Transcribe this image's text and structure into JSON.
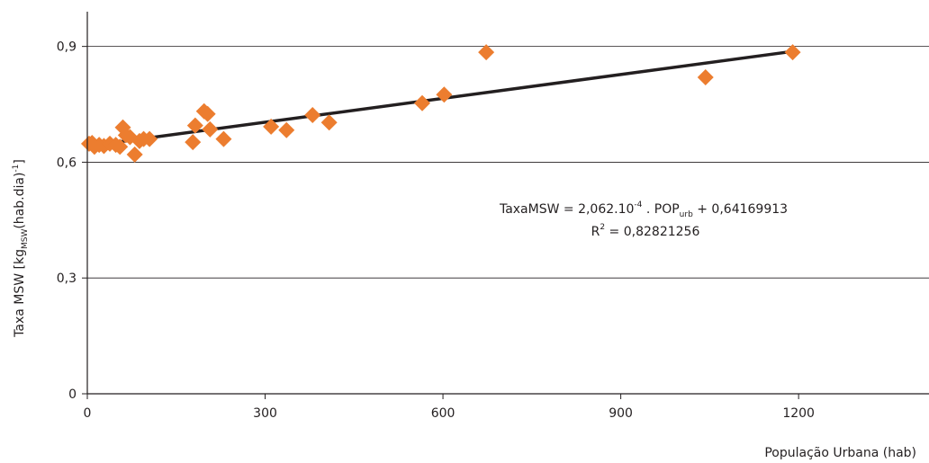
{
  "chart_data": {
    "type": "scatter",
    "xlabel": "População Urbana (hab)",
    "ylabel_parts": {
      "main": "Taxa MSW [kg",
      "sub": "MSW",
      "mid": "(hab.dia)",
      "sup": "-1",
      "end": "]"
    },
    "xlim": [
      0,
      1420
    ],
    "ylim": [
      0,
      0.99
    ],
    "x_ticks": [
      0,
      300,
      600,
      900,
      1200
    ],
    "x_tick_labels": [
      "0",
      "300",
      "600",
      "900",
      "1200"
    ],
    "y_ticks": [
      0,
      0.3,
      0.6,
      0.9
    ],
    "y_tick_labels": [
      "0",
      "0,3",
      "0,6",
      "0,9"
    ],
    "grid": "horizontal",
    "marker_color": "#ec7d2f",
    "line_color": "#231f20",
    "points": [
      {
        "x": 3,
        "y": 0.648
      },
      {
        "x": 8,
        "y": 0.65
      },
      {
        "x": 12,
        "y": 0.64
      },
      {
        "x": 20,
        "y": 0.645
      },
      {
        "x": 28,
        "y": 0.642
      },
      {
        "x": 38,
        "y": 0.648
      },
      {
        "x": 48,
        "y": 0.645
      },
      {
        "x": 55,
        "y": 0.64
      },
      {
        "x": 60,
        "y": 0.69
      },
      {
        "x": 65,
        "y": 0.67
      },
      {
        "x": 72,
        "y": 0.665
      },
      {
        "x": 80,
        "y": 0.62
      },
      {
        "x": 88,
        "y": 0.655
      },
      {
        "x": 95,
        "y": 0.66
      },
      {
        "x": 105,
        "y": 0.66
      },
      {
        "x": 178,
        "y": 0.652
      },
      {
        "x": 182,
        "y": 0.695
      },
      {
        "x": 197,
        "y": 0.732
      },
      {
        "x": 203,
        "y": 0.725
      },
      {
        "x": 207,
        "y": 0.685
      },
      {
        "x": 230,
        "y": 0.66
      },
      {
        "x": 310,
        "y": 0.692
      },
      {
        "x": 336,
        "y": 0.683
      },
      {
        "x": 380,
        "y": 0.722
      },
      {
        "x": 408,
        "y": 0.703
      },
      {
        "x": 565,
        "y": 0.753
      },
      {
        "x": 602,
        "y": 0.775
      },
      {
        "x": 673,
        "y": 0.885
      },
      {
        "x": 1043,
        "y": 0.82
      },
      {
        "x": 1190,
        "y": 0.885
      }
    ],
    "trendline": {
      "slope": 0.0002062,
      "intercept": 0.64169913,
      "x_range": [
        5,
        1190
      ]
    },
    "equation": {
      "lhs": "TaxaMSW = 2,062.10",
      "exp": "-4",
      "mid": " . POP",
      "sub": "urb",
      "rhs": " + 0,64169913"
    },
    "r2": {
      "base": "R",
      "sup": "2",
      "rest": " = 0,82821256"
    }
  }
}
